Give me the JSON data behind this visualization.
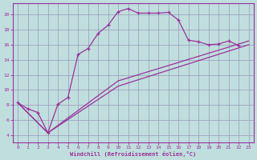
{
  "background_color": "#c0dede",
  "grid_color": "#9999bb",
  "line_color": "#993399",
  "xlabel": "Windchill (Refroidissement éolien,°C)",
  "xlim": [
    -0.5,
    23.5
  ],
  "ylim": [
    3.0,
    21.5
  ],
  "xticks": [
    0,
    1,
    2,
    3,
    4,
    5,
    6,
    7,
    8,
    9,
    10,
    11,
    12,
    13,
    14,
    15,
    16,
    17,
    18,
    19,
    20,
    21,
    22,
    23
  ],
  "yticks": [
    4,
    6,
    8,
    10,
    12,
    14,
    16,
    18,
    20
  ],
  "curve1_x": [
    0,
    1,
    2,
    3,
    4,
    5,
    6,
    7,
    8,
    9,
    10,
    11,
    12,
    13,
    14,
    15,
    16,
    17,
    18,
    19,
    20,
    21,
    22
  ],
  "curve1_y": [
    8.3,
    7.5,
    7.0,
    4.3,
    8.1,
    9.0,
    14.7,
    15.5,
    17.5,
    18.6,
    20.4,
    20.8,
    20.2,
    20.2,
    20.2,
    20.3,
    19.3,
    16.6,
    16.4,
    16.0,
    16.1,
    16.5,
    15.9
  ],
  "curve2_x": [
    0,
    3,
    10,
    23
  ],
  "curve2_y": [
    8.3,
    4.3,
    10.5,
    16.0
  ],
  "curve3_x": [
    0,
    3,
    10,
    23
  ],
  "curve3_y": [
    8.3,
    4.3,
    11.2,
    16.5
  ]
}
